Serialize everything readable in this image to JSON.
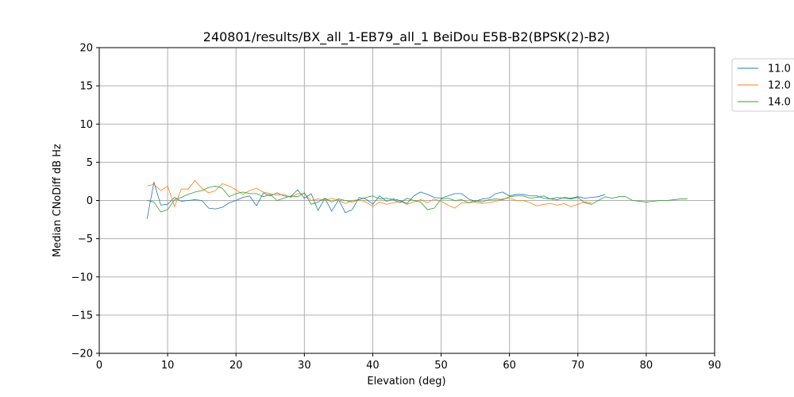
{
  "chart_data": {
    "type": "line",
    "title": "240801/results/BX_all_1-EB79_all_1 BeiDou E5B-B2(BPSK(2)-B2)",
    "xlabel": "Elevation (deg)",
    "ylabel": "Median CNoDiff dB Hz",
    "xlim": [
      0,
      90
    ],
    "ylim": [
      -20,
      20
    ],
    "x_ticks": [
      0,
      10,
      20,
      30,
      40,
      50,
      60,
      70,
      80,
      90
    ],
    "y_ticks": [
      -20,
      -15,
      -10,
      -5,
      0,
      5,
      10,
      15,
      20
    ],
    "grid": true,
    "legend_placement": "outside-top-right",
    "series": [
      {
        "name": "11.0",
        "color": "#1f77b4",
        "x": [
          7,
          8,
          9,
          10,
          11,
          12,
          13,
          14,
          15,
          16,
          17,
          18,
          19,
          20,
          21,
          22,
          23,
          24,
          25,
          26,
          27,
          28,
          29,
          30,
          31,
          32,
          33,
          34,
          35,
          36,
          37,
          38,
          39,
          40,
          41,
          42,
          43,
          44,
          45,
          46,
          47,
          48,
          49,
          50,
          51,
          52,
          53,
          54,
          55,
          56,
          57,
          58,
          59,
          60,
          61,
          62,
          63,
          64,
          65,
          66,
          67,
          68,
          69,
          70,
          71,
          72,
          73,
          74
        ],
        "y": [
          -2.4,
          2.4,
          -0.6,
          -0.5,
          0.4,
          -0.1,
          0.0,
          0.1,
          0.0,
          -1.0,
          -1.1,
          -0.9,
          -0.3,
          0.0,
          0.4,
          0.6,
          -0.7,
          1.0,
          0.6,
          1.0,
          0.6,
          0.5,
          1.4,
          0.3,
          0.9,
          -1.3,
          0.3,
          -1.4,
          0.1,
          -1.6,
          -1.2,
          0.4,
          0.2,
          -0.5,
          0.6,
          -0.1,
          0.2,
          0.0,
          -0.4,
          0.6,
          1.1,
          0.8,
          0.4,
          0.3,
          0.6,
          0.9,
          0.9,
          0.2,
          -0.1,
          0.2,
          0.3,
          0.9,
          1.1,
          0.6,
          0.8,
          0.8,
          0.6,
          0.6,
          0.3,
          0.2,
          0.1,
          0.4,
          0.3,
          0.5,
          0.3,
          0.4,
          0.5,
          0.8
        ]
      },
      {
        "name": "12.0",
        "color": "#ff7f0e",
        "x": [
          7,
          8,
          9,
          10,
          11,
          12,
          13,
          14,
          15,
          16,
          17,
          18,
          19,
          20,
          21,
          22,
          23,
          24,
          25,
          26,
          27,
          28,
          29,
          30,
          31,
          32,
          33,
          34,
          35,
          36,
          37,
          38,
          39,
          40,
          41,
          42,
          43,
          44,
          45,
          46,
          47,
          48,
          49,
          50,
          51,
          52,
          53,
          54,
          55,
          56,
          57,
          58,
          59,
          60,
          61,
          62,
          63,
          64,
          65,
          66,
          67,
          68,
          69,
          70,
          71,
          72
        ],
        "y": [
          1.9,
          2.1,
          1.3,
          1.9,
          -0.8,
          1.5,
          1.5,
          2.6,
          1.6,
          1.0,
          1.3,
          2.2,
          1.9,
          1.4,
          0.8,
          1.3,
          1.6,
          1.1,
          0.9,
          0.7,
          0.8,
          0.4,
          0.9,
          0.9,
          0.0,
          0.2,
          0.0,
          0.3,
          0.0,
          -0.4,
          0.0,
          0.1,
          -0.2,
          -0.8,
          -0.2,
          -0.5,
          -0.3,
          -0.1,
          -0.5,
          -0.2,
          0.1,
          -0.3,
          0.2,
          -0.1,
          -0.6,
          -1.0,
          -0.3,
          -0.3,
          -0.2,
          -0.4,
          -0.3,
          -0.1,
          0.2,
          0.3,
          0.0,
          0.0,
          -0.3,
          -0.7,
          -0.5,
          -0.4,
          -0.6,
          -0.4,
          -0.8,
          -0.5,
          -0.2,
          -0.3
        ]
      },
      {
        "name": "14.0",
        "color": "#2ca02c",
        "x": [
          7,
          8,
          9,
          10,
          11,
          12,
          13,
          14,
          15,
          16,
          17,
          18,
          19,
          20,
          21,
          22,
          23,
          24,
          25,
          26,
          27,
          28,
          29,
          30,
          31,
          32,
          33,
          34,
          35,
          36,
          37,
          38,
          39,
          40,
          41,
          42,
          43,
          44,
          45,
          46,
          47,
          48,
          49,
          50,
          51,
          52,
          53,
          54,
          55,
          56,
          57,
          58,
          59,
          60,
          61,
          62,
          63,
          64,
          65,
          66,
          67,
          68,
          69,
          70,
          71,
          72,
          73,
          74,
          75,
          76,
          77,
          78,
          79,
          80,
          81,
          82,
          83,
          84,
          85,
          86
        ],
        "y": [
          0.0,
          -0.2,
          -1.5,
          -1.2,
          0.1,
          0.4,
          0.8,
          1.1,
          1.3,
          1.7,
          1.9,
          1.6,
          0.5,
          0.9,
          1.1,
          0.9,
          0.9,
          0.5,
          0.8,
          0.0,
          0.3,
          0.6,
          0.5,
          1.0,
          -0.5,
          -0.2,
          0.3,
          -0.2,
          0.2,
          0.0,
          -0.2,
          0.1,
          0.4,
          0.6,
          0.2,
          0.3,
          0.1,
          -0.3,
          0.3,
          0.0,
          -0.2,
          -1.2,
          -1.0,
          0.2,
          0.3,
          0.0,
          0.1,
          -0.3,
          0.0,
          -0.2,
          0.1,
          0.2,
          0.1,
          0.5,
          0.6,
          0.6,
          0.3,
          0.4,
          0.6,
          0.2,
          0.4,
          0.3,
          0.2,
          0.4,
          -0.3,
          -0.5,
          0.0,
          0.5,
          0.3,
          0.5,
          0.5,
          0.0,
          -0.1,
          -0.2,
          -0.1,
          0.0,
          0.0,
          0.1,
          0.2,
          0.2
        ]
      }
    ]
  }
}
